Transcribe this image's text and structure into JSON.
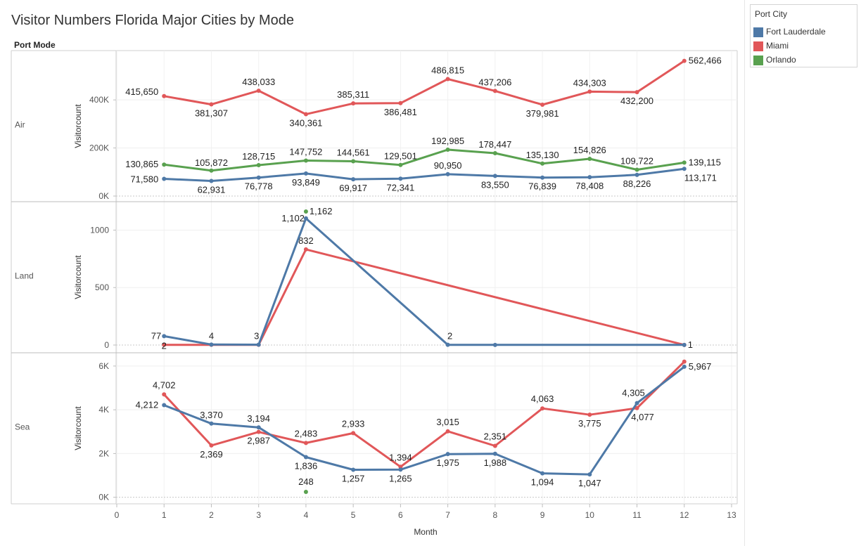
{
  "title": "Visitor Numbers Florida Major Cities by Mode",
  "legend": {
    "title": "Port City",
    "items": [
      {
        "label": "Fort Lauderdale",
        "color": "#4e79a7"
      },
      {
        "label": "Miami",
        "color": "#e15759"
      },
      {
        "label": "Orlando",
        "color": "#59a14f"
      }
    ]
  },
  "chart_data": {
    "type": "line",
    "row_header": "Port Mode",
    "xlabel": "Month",
    "xlim": [
      0,
      13
    ],
    "x_ticks": [
      "0",
      "1",
      "2",
      "3",
      "4",
      "5",
      "6",
      "7",
      "8",
      "9",
      "10",
      "11",
      "12",
      "13"
    ],
    "panels": [
      {
        "name": "Air",
        "ylabel": "Visitorcount",
        "ylim": [
          0,
          570000
        ],
        "y_ticks": [
          {
            "v": 0,
            "label": "0K"
          },
          {
            "v": 200000,
            "label": "200K"
          },
          {
            "v": 400000,
            "label": "400K"
          }
        ],
        "series": [
          {
            "name": "Miami",
            "color": "#e15759",
            "points": [
              [
                1,
                415650
              ],
              [
                2,
                381307
              ],
              [
                3,
                438033
              ],
              [
                4,
                340361
              ],
              [
                5,
                385311
              ],
              [
                6,
                386481
              ],
              [
                7,
                486815
              ],
              [
                8,
                437206
              ],
              [
                9,
                379981
              ],
              [
                10,
                434303
              ],
              [
                11,
                432200
              ],
              [
                12,
                562466
              ]
            ],
            "labels": [
              "415,650",
              "381,307",
              "438,033",
              "340,361",
              "385,311",
              "386,481",
              "486,815",
              "437,206",
              "379,981",
              "434,303",
              "432,200",
              "562,466"
            ]
          },
          {
            "name": "Orlando",
            "color": "#59a14f",
            "points": [
              [
                1,
                130865
              ],
              [
                2,
                105872
              ],
              [
                3,
                128715
              ],
              [
                4,
                147752
              ],
              [
                5,
                144561
              ],
              [
                6,
                129501
              ],
              [
                7,
                192985
              ],
              [
                8,
                178447
              ],
              [
                9,
                135130
              ],
              [
                10,
                154826
              ],
              [
                11,
                109722
              ],
              [
                12,
                139115
              ]
            ],
            "labels": [
              "130,865",
              "105,872",
              "128,715",
              "147,752",
              "144,561",
              "129,501",
              "192,985",
              "178,447",
              "135,130",
              "154,826",
              "109,722",
              "139,115"
            ]
          },
          {
            "name": "Fort Lauderdale",
            "color": "#4e79a7",
            "points": [
              [
                1,
                71580
              ],
              [
                2,
                62931
              ],
              [
                3,
                76778
              ],
              [
                4,
                93849
              ],
              [
                5,
                69917
              ],
              [
                6,
                72341
              ],
              [
                7,
                90950
              ],
              [
                8,
                83550
              ],
              [
                9,
                76839
              ],
              [
                10,
                78408
              ],
              [
                11,
                88226
              ],
              [
                12,
                113171
              ]
            ],
            "labels": [
              "71,580",
              "62,931",
              "76,778",
              "93,849",
              "69,917",
              "72,341",
              "90,950",
              "83,550",
              "76,839",
              "78,408",
              "88,226",
              "113,171"
            ]
          }
        ]
      },
      {
        "name": "Land",
        "ylabel": "Visitorcount",
        "ylim": [
          0,
          1180
        ],
        "y_ticks": [
          {
            "v": 0,
            "label": "0"
          },
          {
            "v": 500,
            "label": "500"
          },
          {
            "v": 1000,
            "label": "1000"
          }
        ],
        "series": [
          {
            "name": "Miami",
            "color": "#e15759",
            "points": [
              [
                1,
                2
              ],
              [
                2,
                2
              ],
              [
                3,
                2
              ],
              [
                4,
                832
              ],
              [
                12,
                1
              ]
            ],
            "labels": [
              "2",
              "",
              "",
              "832",
              ""
            ]
          },
          {
            "name": "Fort Lauderdale",
            "color": "#4e79a7",
            "points": [
              [
                1,
                77
              ],
              [
                2,
                4
              ],
              [
                3,
                3
              ],
              [
                4,
                1102
              ],
              [
                7,
                2
              ],
              [
                8,
                1
              ],
              [
                12,
                1
              ]
            ],
            "labels": [
              "77",
              "4",
              "3",
              "1,102",
              "2",
              "",
              "1"
            ]
          },
          {
            "name": "Orlando",
            "color": "#59a14f",
            "points": [
              [
                4,
                1162
              ]
            ],
            "labels": [
              "1,162"
            ]
          }
        ]
      },
      {
        "name": "Sea",
        "ylabel": "Visitorcount",
        "ylim": [
          -300,
          6350
        ],
        "y_ticks": [
          {
            "v": 0,
            "label": "0K"
          },
          {
            "v": 2000,
            "label": "2K"
          },
          {
            "v": 4000,
            "label": "4K"
          },
          {
            "v": 6000,
            "label": "6K"
          }
        ],
        "series": [
          {
            "name": "Miami",
            "color": "#e15759",
            "points": [
              [
                1,
                4702
              ],
              [
                2,
                2369
              ],
              [
                3,
                2987
              ],
              [
                4,
                2483
              ],
              [
                5,
                2933
              ],
              [
                6,
                1394
              ],
              [
                7,
                3015
              ],
              [
                8,
                2351
              ],
              [
                9,
                4063
              ],
              [
                10,
                3775
              ],
              [
                11,
                4077
              ],
              [
                12,
                6200
              ]
            ],
            "labels": [
              "4,702",
              "2,369",
              "2,987",
              "2,483",
              "2,933",
              "1,394",
              "3,015",
              "2,351",
              "4,063",
              "3,775",
              "4,077",
              ""
            ]
          },
          {
            "name": "Fort Lauderdale",
            "color": "#4e79a7",
            "points": [
              [
                1,
                4212
              ],
              [
                2,
                3370
              ],
              [
                3,
                3194
              ],
              [
                4,
                1836
              ],
              [
                5,
                1257
              ],
              [
                6,
                1265
              ],
              [
                7,
                1975
              ],
              [
                8,
                1988
              ],
              [
                9,
                1094
              ],
              [
                10,
                1047
              ],
              [
                11,
                4305
              ],
              [
                12,
                5967
              ]
            ],
            "labels": [
              "4,212",
              "3,370",
              "3,194",
              "1,836",
              "1,257",
              "1,265",
              "1,975",
              "1,988",
              "1,094",
              "1,047",
              "4,305",
              "5,967"
            ]
          },
          {
            "name": "Orlando",
            "color": "#59a14f",
            "points": [
              [
                4,
                248
              ]
            ],
            "labels": [
              "248"
            ]
          }
        ]
      }
    ]
  }
}
